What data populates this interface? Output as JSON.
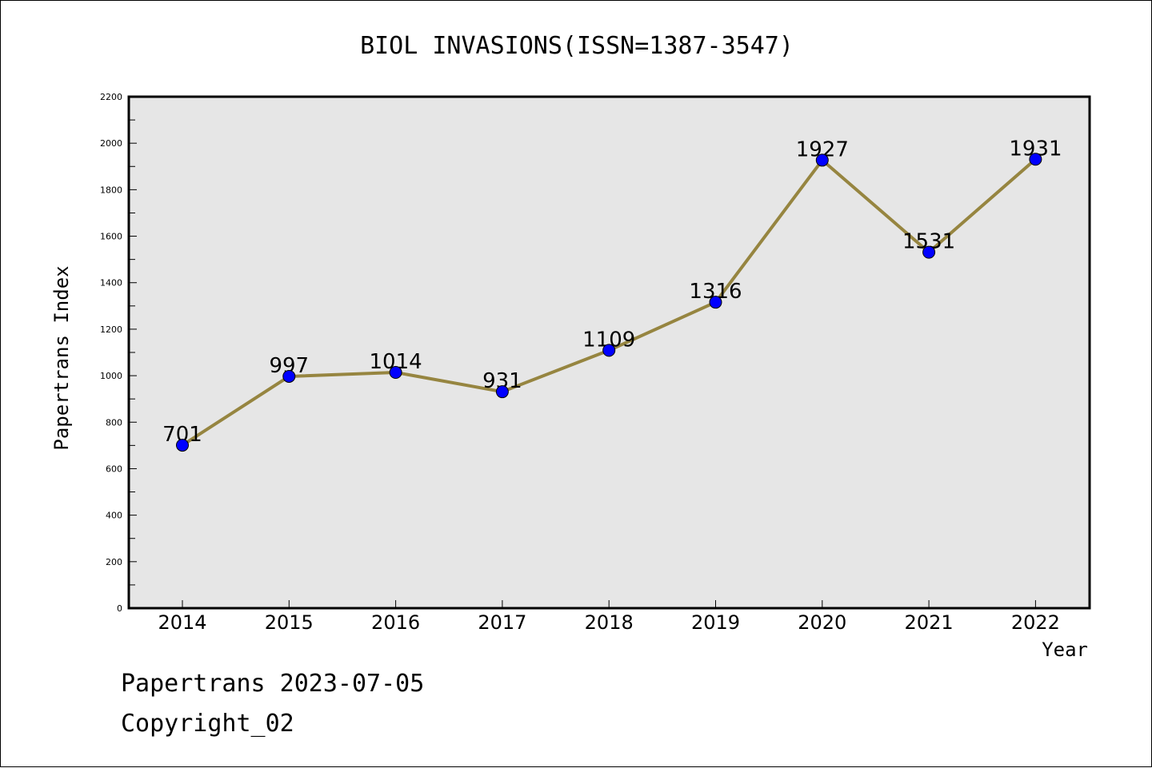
{
  "chart_data": {
    "type": "line",
    "title": "BIOL INVASIONS(ISSN=1387-3547)",
    "xlabel": "Year",
    "ylabel": "Papertrans Index",
    "categories": [
      "2014",
      "2015",
      "2016",
      "2017",
      "2018",
      "2019",
      "2020",
      "2021",
      "2022"
    ],
    "values": [
      701,
      997,
      1014,
      931,
      1109,
      1316,
      1927,
      1531,
      1931
    ],
    "data_labels": [
      "701",
      "997",
      "1014",
      "931",
      "1109",
      "1316",
      "1927",
      "1531",
      "1931"
    ],
    "ylim": [
      0,
      2200
    ],
    "yticks": [
      "0",
      "200",
      "400",
      "600",
      "800",
      "1000",
      "1200",
      "1400",
      "1600",
      "1800",
      "2000",
      "2200"
    ],
    "grid": false,
    "legend": "none",
    "line_color": "#968540",
    "marker_color": "#0000ff",
    "plot_background": "#e6e6e6"
  },
  "footer": {
    "date_line": "Papertrans 2023-07-05",
    "copyright_line": "Copyright_02"
  }
}
